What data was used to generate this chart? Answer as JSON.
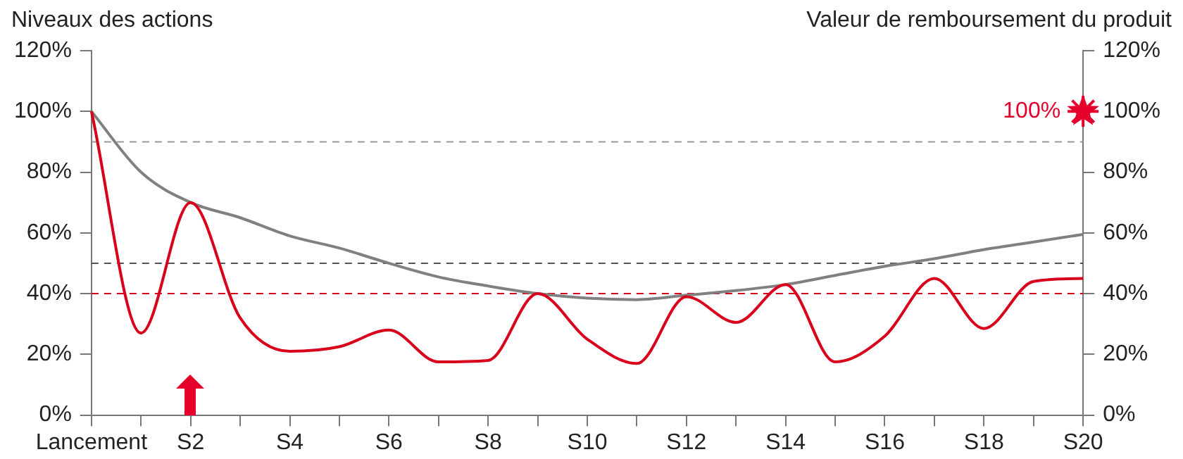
{
  "chart_data": {
    "type": "line",
    "ylabel": "Niveaux des actions",
    "y2label": "Valeur de remboursement du produit",
    "categories": [
      "Lancement",
      null,
      "S2",
      null,
      "S4",
      null,
      "S6",
      null,
      "S8",
      null,
      "S10",
      null,
      "S12",
      null,
      "S14",
      null,
      "S16",
      null,
      "S18",
      null,
      "S20"
    ],
    "series": [
      {
        "color": "#d9001b",
        "values": [
          100,
          27,
          70,
          32,
          21,
          22.5,
          28,
          17.5,
          18,
          40,
          25,
          17,
          39,
          30.5,
          43,
          17.5,
          26,
          45,
          28.5,
          44,
          45
        ]
      },
      {
        "color": "#808080",
        "values": [
          100,
          80,
          70,
          65,
          59,
          55,
          50,
          45.5,
          42.5,
          40,
          38.5,
          38,
          39.5,
          41,
          43,
          46,
          49,
          51.5,
          54.5,
          57,
          59.5
        ]
      },
      {
        "type": "scatter",
        "color": "#e4002b",
        "marker": "star",
        "values": [
          null,
          null,
          null,
          null,
          null,
          null,
          null,
          null,
          null,
          null,
          null,
          null,
          null,
          null,
          null,
          null,
          null,
          null,
          null,
          null,
          100
        ],
        "value_labels": [
          null,
          null,
          null,
          null,
          null,
          null,
          null,
          null,
          null,
          null,
          null,
          null,
          null,
          null,
          null,
          null,
          null,
          null,
          null,
          null,
          "100%"
        ]
      }
    ],
    "ylim": [
      0,
      120
    ],
    "yticks": [
      {
        "value": 0,
        "label": "0%"
      },
      {
        "value": 20,
        "label": "20%"
      },
      {
        "value": 40,
        "label": "40%"
      },
      {
        "value": 60,
        "label": "60%"
      },
      {
        "value": 80,
        "label": "80%"
      },
      {
        "value": 100,
        "label": "100%"
      },
      {
        "value": 120,
        "label": "120%"
      }
    ],
    "y2lim": [
      0,
      120
    ],
    "y2ticks": [
      {
        "value": 0,
        "label": "0%"
      },
      {
        "value": 20,
        "label": "20%"
      },
      {
        "value": 40,
        "label": "40%"
      },
      {
        "value": 60,
        "label": "60%"
      },
      {
        "value": 80,
        "label": "80%"
      },
      {
        "value": 100,
        "label": "100%"
      },
      {
        "value": 120,
        "label": "120%"
      }
    ],
    "ref_lines": [
      {
        "axis": "y",
        "value": 90,
        "color": "#999999",
        "line_style": "dashed"
      },
      {
        "axis": "y",
        "value": 50,
        "color": "#555555",
        "line_style": "dashed"
      },
      {
        "axis": "y",
        "value": 40,
        "color": "#d9001b",
        "line_style": "dashed"
      }
    ],
    "marker": "none",
    "grid": false,
    "legend": false
  }
}
